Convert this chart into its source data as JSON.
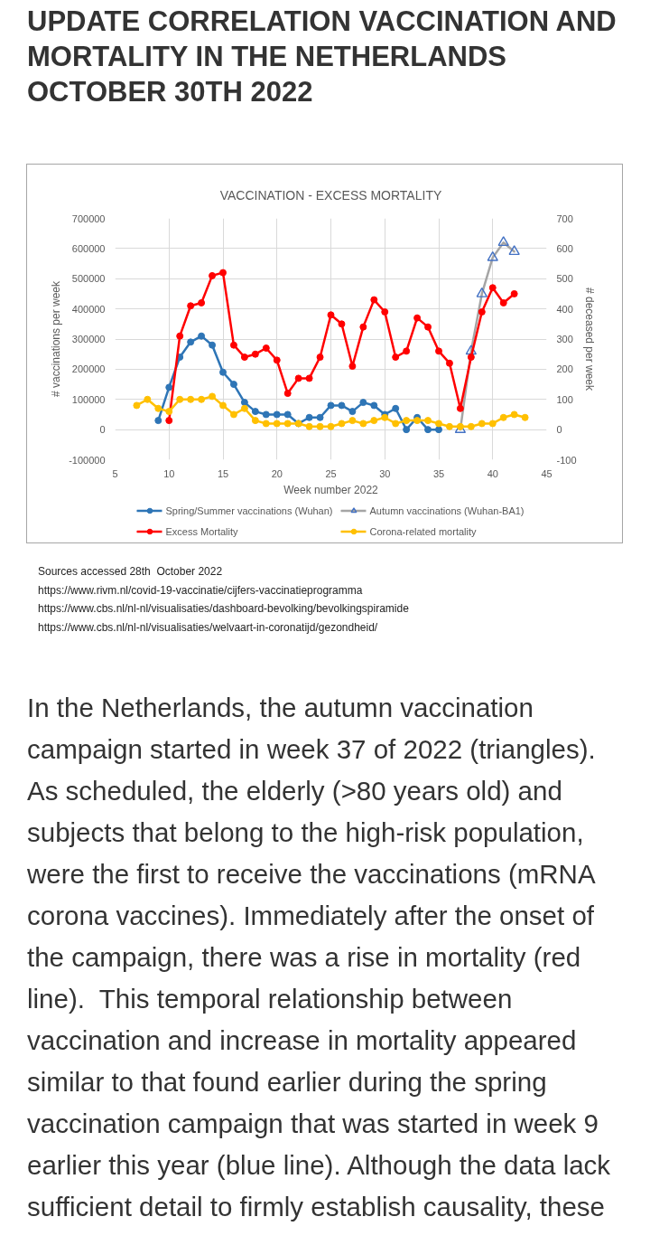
{
  "chart_data": {
    "type": "line",
    "title": "UPDATE CORRELATION VACCINATION AND MORTALITY IN THE NETHERLANDS OCTOBER 30TH 2022",
    "subtitle": "VACCINATION - EXCESS MORTALITY",
    "xlabel": "Week number 2022",
    "ylabel": "# vaccinations per week",
    "y2label": "# deceased per week",
    "xlim": [
      5,
      45
    ],
    "xticks": [
      5,
      10,
      15,
      20,
      25,
      30,
      35,
      40,
      45
    ],
    "ylim": [
      -100000,
      700000
    ],
    "yticks": [
      -100000,
      0,
      100000,
      200000,
      300000,
      400000,
      500000,
      600000,
      700000
    ],
    "y2lim": [
      -100,
      700
    ],
    "y2ticks": [
      -100,
      0,
      100,
      200,
      300,
      400,
      500,
      600,
      700
    ],
    "grid": true,
    "legend": "bottom",
    "marker": "circle",
    "line_style": "solid",
    "series": [
      {
        "name": "Spring/Summer vaccinations (Wuhan)",
        "color": "#2e75b6",
        "x": [
          9,
          10,
          11,
          12,
          13,
          14,
          15,
          16,
          17,
          18,
          19,
          20,
          21,
          22,
          23,
          24,
          25,
          26,
          27,
          28,
          29,
          30,
          31,
          32,
          33,
          34,
          35
        ],
        "values": [
          30000,
          140000,
          240000,
          290000,
          310000,
          280000,
          190000,
          150000,
          90000,
          60000,
          50000,
          50000,
          50000,
          20000,
          40000,
          40000,
          80000,
          80000,
          60000,
          90000,
          80000,
          50000,
          70000,
          0,
          40000,
          0,
          0
        ]
      },
      {
        "name": "Autumn vaccinations (Wuhan-BA1)",
        "color": "#a5a5a5",
        "marker": "triangle",
        "colors": [
          "#4472c4",
          "#4472c4",
          "#4472c4",
          "#4472c4",
          "#4472c4",
          "#4472c4"
        ],
        "x": [
          37,
          38,
          39,
          40,
          41,
          42
        ],
        "values": [
          0,
          260000,
          450000,
          570000,
          620000,
          590000
        ]
      },
      {
        "name": "Excess Mortality",
        "color": "#ff0000",
        "axis": "y2",
        "x": [
          10,
          11,
          12,
          13,
          14,
          15,
          16,
          17,
          18,
          19,
          20,
          21,
          22,
          23,
          24,
          25,
          26,
          27,
          28,
          29,
          30,
          31,
          32,
          33,
          34,
          35,
          36,
          37,
          38,
          39,
          40,
          41,
          42
        ],
        "values": [
          30,
          310,
          410,
          420,
          510,
          520,
          280,
          240,
          250,
          270,
          230,
          120,
          170,
          170,
          240,
          380,
          350,
          210,
          340,
          430,
          390,
          240,
          260,
          370,
          340,
          260,
          220,
          70,
          240,
          390,
          470,
          420,
          450
        ]
      },
      {
        "name": "Corona-related mortality",
        "color": "#ffc000",
        "axis": "y2",
        "x": [
          7,
          8,
          9,
          10,
          11,
          12,
          13,
          14,
          15,
          16,
          17,
          18,
          19,
          20,
          21,
          22,
          23,
          24,
          25,
          26,
          27,
          28,
          29,
          30,
          31,
          32,
          33,
          34,
          35,
          36,
          37,
          38,
          39,
          40,
          41,
          42,
          43
        ],
        "values": [
          80,
          100,
          70,
          60,
          100,
          100,
          100,
          110,
          80,
          50,
          70,
          30,
          20,
          20,
          20,
          20,
          10,
          10,
          10,
          20,
          30,
          20,
          30,
          40,
          20,
          30,
          30,
          30,
          20,
          10,
          10,
          10,
          20,
          20,
          40,
          50,
          40
        ]
      }
    ],
    "annotations": [
      "Sources accessed 28th  October 2022",
      "https://www.rivm.nl/covid-19-vaccinatie/cijfers-vaccinatieprogramma",
      "https://www.cbs.nl/nl-nl/visualisaties/dashboard-bevolking/bevolkingspiramide",
      "https://www.cbs.nl/nl-nl/visualisaties/welvaart-in-coronatijd/gezondheid/",
      "In the Netherlands, the autumn vaccination campaign started in week 37 of 2022 (triangles). As scheduled, the elderly (>80 years old) and subjects that belong to the high-risk population, were the first to receive the vaccinations (mRNA corona vaccines). Immediately after the onset of the campaign, there was a rise in mortality (red line).  This temporal relationship between vaccination and increase in mortality appeared similar to that found earlier during the spring vaccination campaign that was started in week 9 earlier this year (blue line). Although the data lack sufficient detail to firmly establish causality, these"
    ]
  }
}
